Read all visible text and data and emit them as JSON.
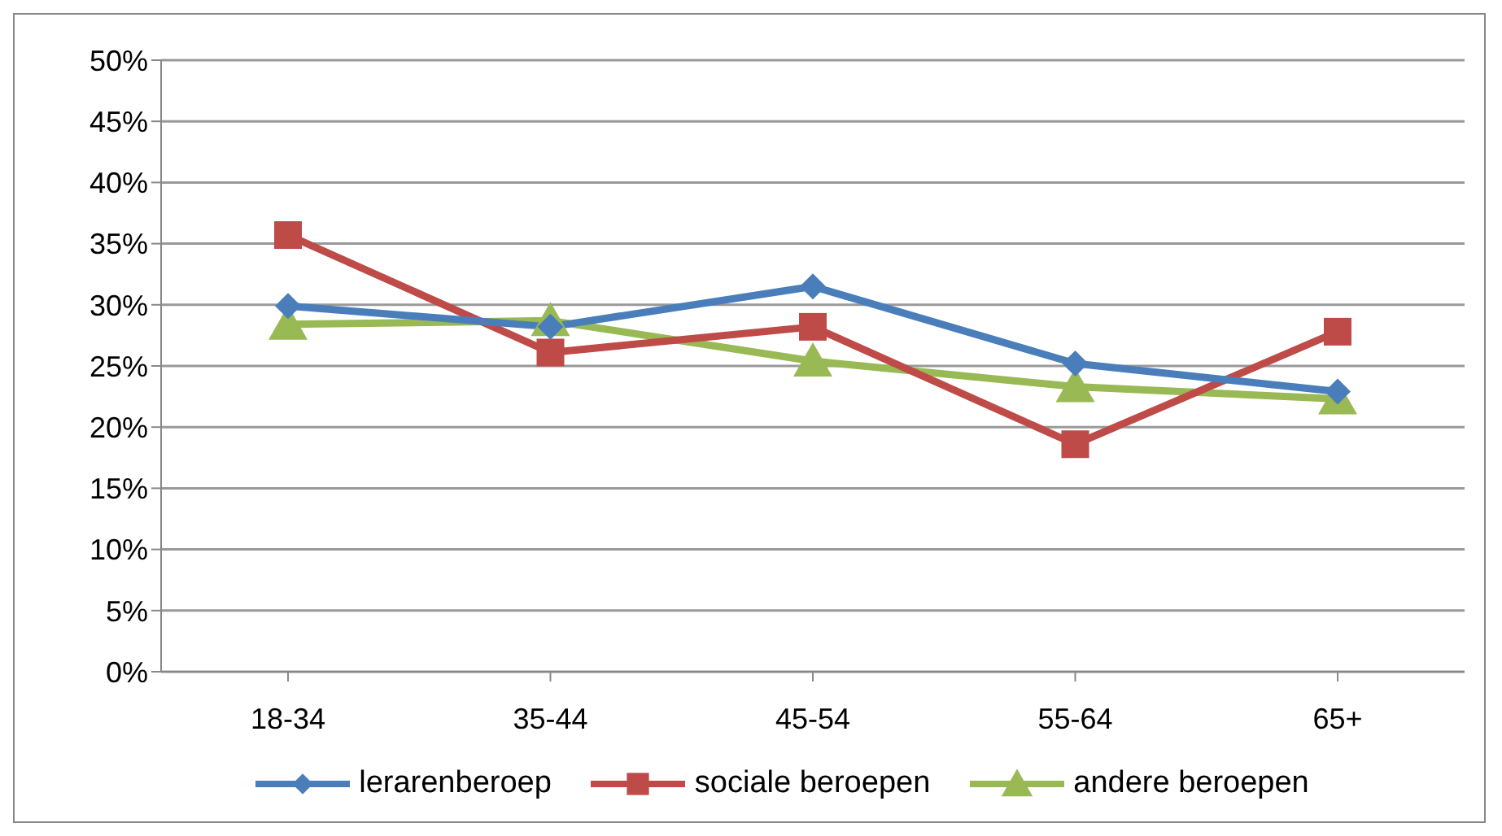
{
  "chart_data": {
    "type": "line",
    "categories": [
      "18-34",
      "35-44",
      "45-54",
      "55-64",
      "65+"
    ],
    "series": [
      {
        "name": "lerarenberoep",
        "color": "#4a7ebb",
        "marker": "diamond",
        "values": [
          29.9,
          28.2,
          31.5,
          25.2,
          22.9
        ]
      },
      {
        "name": "sociale beroepen",
        "color": "#be4b48",
        "marker": "square",
        "values": [
          35.7,
          26.1,
          28.2,
          18.6,
          27.8
        ]
      },
      {
        "name": "andere beroepen",
        "color": "#98b954",
        "marker": "triangle",
        "values": [
          28.4,
          28.7,
          25.4,
          23.3,
          22.3
        ]
      }
    ],
    "ylim": [
      0,
      50
    ],
    "yticks": [
      {
        "value": 0,
        "label": "0%"
      },
      {
        "value": 5,
        "label": "5%"
      },
      {
        "value": 10,
        "label": "10%"
      },
      {
        "value": 15,
        "label": "15%"
      },
      {
        "value": 20,
        "label": "20%"
      },
      {
        "value": 25,
        "label": "25%"
      },
      {
        "value": 30,
        "label": "30%"
      },
      {
        "value": 35,
        "label": "35%"
      },
      {
        "value": 40,
        "label": "40%"
      },
      {
        "value": 45,
        "label": "45%"
      },
      {
        "value": 50,
        "label": "50%"
      }
    ],
    "grid": "y",
    "legend": "bottom",
    "line_style": "solid"
  }
}
